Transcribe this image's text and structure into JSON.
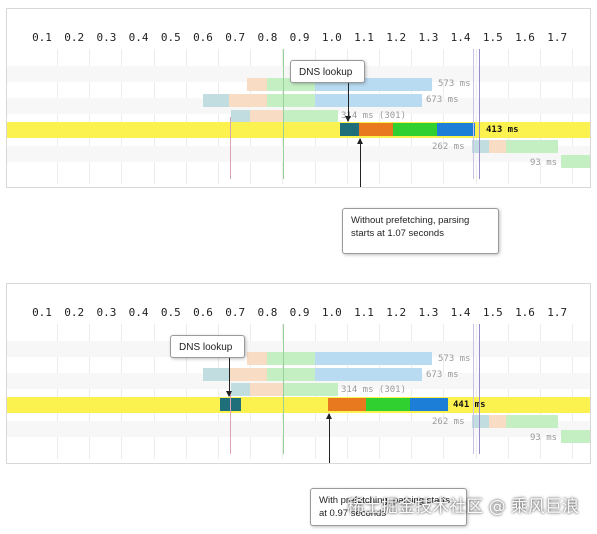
{
  "scale_ticks": [
    "0.1",
    "0.2",
    "0.3",
    "0.4",
    "0.5",
    "0.6",
    "0.7",
    "0.8",
    "0.9",
    "1.0",
    "1.1",
    "1.2",
    "1.3",
    "1.4",
    "1.5",
    "1.6",
    "1.7"
  ],
  "colors": {
    "highlight_row": "#fbf250",
    "dns": "#1e6f7a",
    "orange": "#e8791e",
    "green": "#2fd02f",
    "blue": "#1c7ed6",
    "light_blue": "#b9dbf2",
    "light_green": "#c3efc3",
    "peach": "#f8dcc4",
    "light_teal": "#c2dde0",
    "marker_green": "#9ad19a",
    "marker_purple": "#9a8ccc",
    "marker_pink": "#d9a3b7"
  },
  "panel_top": {
    "rows": [
      {
        "label": "573 ms"
      },
      {
        "label": "673 ms"
      },
      {
        "label": "314 ms (301)"
      },
      {
        "label": "413 ms"
      },
      {
        "label": "262 ms"
      },
      {
        "label": "93 ms"
      }
    ],
    "callout_dns": "DNS lookup",
    "callout_parse": "Without prefetching, parsing starts at 1.07 seconds"
  },
  "panel_bottom": {
    "rows": [
      {
        "label": "573 ms"
      },
      {
        "label": "673 ms"
      },
      {
        "label": "314 ms (301)"
      },
      {
        "label": "441 ms"
      },
      {
        "label": "262 ms"
      },
      {
        "label": "93 ms"
      }
    ],
    "callout_dns": "DNS lookup",
    "callout_parse": "With prefetching, parsing starts at 0.97 seconds"
  },
  "watermark": "稀土掘金技术社区 @ 乘风巨浪"
}
